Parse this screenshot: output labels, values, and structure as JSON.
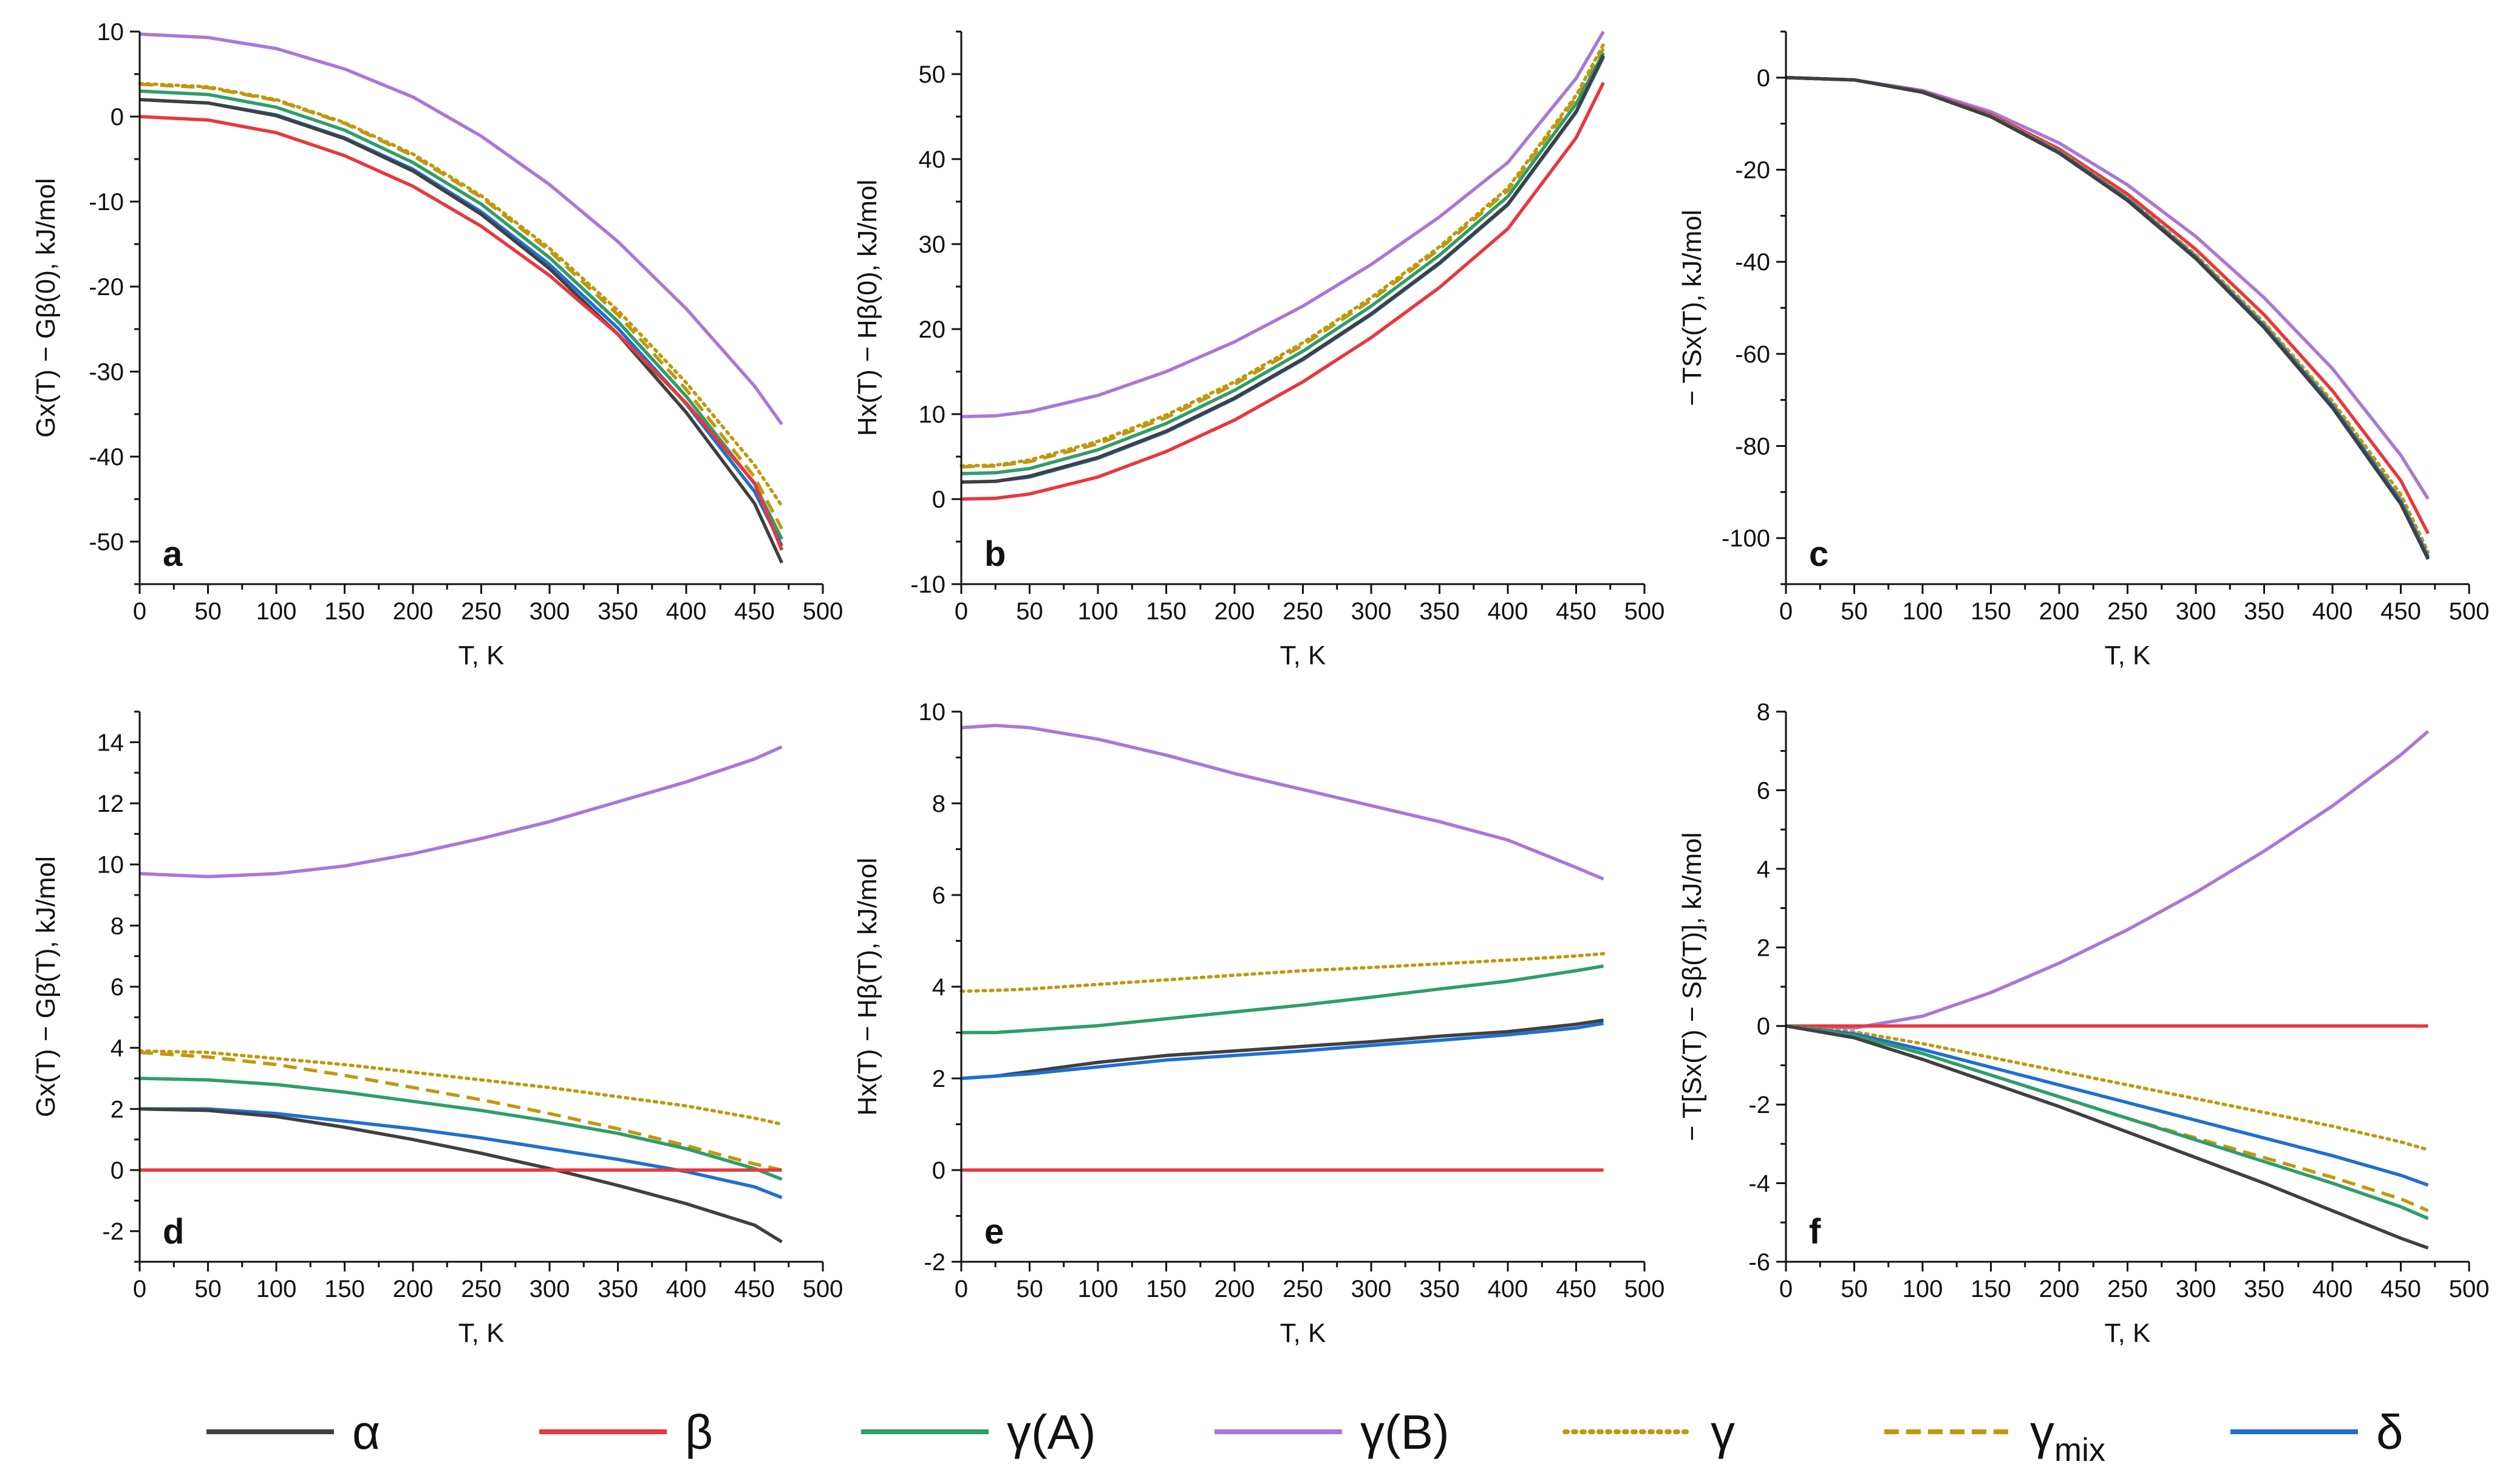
{
  "legend": [
    {
      "key": "alpha",
      "label": "α",
      "color": "#404040",
      "dash": "solid"
    },
    {
      "key": "beta",
      "label": "β",
      "color": "#e8383d",
      "dash": "solid"
    },
    {
      "key": "gammaA",
      "label": "γ(A)",
      "color": "#2e9e6a",
      "dash": "solid"
    },
    {
      "key": "gammaB",
      "label": "γ(B)",
      "color": "#a878d8",
      "dash": "solid"
    },
    {
      "key": "gamma",
      "label": "γ",
      "color": "#c0980e",
      "dash": "dotted"
    },
    {
      "key": "gammaMix",
      "label": "γ",
      "sub": "mix",
      "color": "#c0980e",
      "dash": "dashed"
    },
    {
      "key": "delta",
      "label": "δ",
      "color": "#1f6fd0",
      "dash": "solid"
    }
  ],
  "chart_data": [
    {
      "panel": "a",
      "type": "line",
      "xlabel": "T, K",
      "ylabel": "Gx(T) − Gβ(0), kJ/mol",
      "xlim": [
        0,
        500
      ],
      "ylim": [
        -55,
        10
      ],
      "xticks": [
        0,
        50,
        100,
        150,
        200,
        250,
        300,
        350,
        400,
        450,
        500
      ],
      "yticks": [
        -50,
        -40,
        -30,
        -20,
        -10,
        0,
        10
      ],
      "x": [
        0,
        50,
        100,
        150,
        200,
        250,
        300,
        350,
        400,
        450,
        470
      ],
      "series": [
        {
          "key": "gammaB",
          "values": [
            9.7,
            9.3,
            8,
            5.6,
            2.3,
            -2.3,
            -8,
            -14.7,
            -22.6,
            -31.7,
            -36.2
          ]
        },
        {
          "key": "gamma",
          "values": [
            3.9,
            3.5,
            2,
            -0.7,
            -4.4,
            -9.3,
            -15.5,
            -22.8,
            -31.3,
            -41,
            -45.8
          ]
        },
        {
          "key": "gammaMix",
          "values": [
            3.8,
            3.4,
            1.9,
            -0.8,
            -4.6,
            -9.5,
            -15.8,
            -23.3,
            -32.1,
            -42.4,
            -48.5
          ]
        },
        {
          "key": "gammaA",
          "values": [
            3,
            2.6,
            1.1,
            -1.6,
            -5.4,
            -10.3,
            -16.6,
            -24.1,
            -32.9,
            -43.2,
            -49.7
          ]
        },
        {
          "key": "delta",
          "values": [
            2,
            1.6,
            0.2,
            -2.5,
            -6.2,
            -11.2,
            -17.4,
            -24.9,
            -33.8,
            -44.1,
            -50.5
          ]
        },
        {
          "key": "alpha",
          "values": [
            2,
            1.6,
            0.1,
            -2.6,
            -6.4,
            -11.5,
            -17.9,
            -25.6,
            -34.8,
            -45.5,
            -52.5
          ]
        },
        {
          "key": "beta",
          "values": [
            0,
            -0.4,
            -1.9,
            -4.6,
            -8.2,
            -12.9,
            -18.7,
            -25.6,
            -33.7,
            -43.1,
            -51
          ]
        }
      ]
    },
    {
      "panel": "b",
      "type": "line",
      "xlabel": "T, K",
      "ylabel": "Hx(T) − Hβ(0), kJ/mol",
      "xlim": [
        0,
        500
      ],
      "ylim": [
        -10,
        55
      ],
      "xticks": [
        0,
        50,
        100,
        150,
        200,
        250,
        300,
        350,
        400,
        450,
        500
      ],
      "yticks": [
        -10,
        0,
        10,
        20,
        30,
        40,
        50
      ],
      "x": [
        0,
        25,
        50,
        100,
        150,
        200,
        250,
        300,
        350,
        400,
        450,
        470
      ],
      "series": [
        {
          "key": "gammaB",
          "values": [
            9.7,
            9.8,
            10.3,
            12.2,
            15,
            18.5,
            22.7,
            27.6,
            33.2,
            39.6,
            49.5,
            55
          ]
        },
        {
          "key": "gamma",
          "values": [
            3.9,
            4,
            4.6,
            6.8,
            9.9,
            13.8,
            18.4,
            23.7,
            29.7,
            36.6,
            47.5,
            53.5
          ]
        },
        {
          "key": "gammaMix",
          "values": [
            3.8,
            3.9,
            4.4,
            6.5,
            9.6,
            13.5,
            18.1,
            23.4,
            29.4,
            36.3,
            47.2,
            53
          ]
        },
        {
          "key": "gammaA",
          "values": [
            3,
            3.1,
            3.6,
            5.8,
            8.9,
            12.8,
            17.4,
            22.7,
            28.7,
            35.6,
            46.5,
            52.5
          ]
        },
        {
          "key": "delta",
          "values": [
            2,
            2.1,
            2.6,
            4.8,
            7.9,
            11.8,
            16.4,
            21.7,
            27.7,
            34.6,
            45.5,
            52
          ]
        },
        {
          "key": "alpha",
          "values": [
            2,
            2.1,
            2.7,
            4.9,
            8,
            11.9,
            16.5,
            21.8,
            27.8,
            34.7,
            45.6,
            52.2
          ]
        },
        {
          "key": "beta",
          "values": [
            0,
            0.1,
            0.6,
            2.6,
            5.6,
            9.3,
            13.8,
            19,
            24.9,
            31.8,
            42.5,
            49
          ]
        }
      ]
    },
    {
      "panel": "c",
      "type": "line",
      "xlabel": "T, K",
      "ylabel": "− TSx(T), kJ/mol",
      "xlim": [
        0,
        500
      ],
      "ylim": [
        -110,
        10
      ],
      "xticks": [
        0,
        50,
        100,
        150,
        200,
        250,
        300,
        350,
        400,
        450,
        500
      ],
      "yticks": [
        -100,
        -80,
        -60,
        -40,
        -20,
        0
      ],
      "x": [
        0,
        50,
        100,
        150,
        200,
        250,
        300,
        350,
        400,
        450,
        470
      ],
      "series": [
        {
          "key": "gammaB",
          "values": [
            0,
            -0.5,
            -2.8,
            -7.4,
            -14.2,
            -23.3,
            -34.5,
            -47.8,
            -63.2,
            -82,
            -91.5
          ]
        },
        {
          "key": "beta",
          "values": [
            0,
            -0.5,
            -3,
            -8,
            -15.5,
            -25.3,
            -37.3,
            -51.5,
            -68,
            -87.5,
            -99
          ]
        },
        {
          "key": "gamma",
          "values": [
            0,
            -0.5,
            -3.1,
            -8.3,
            -16,
            -26.1,
            -38.5,
            -53.2,
            -70.3,
            -90.5,
            -103
          ]
        },
        {
          "key": "gammaMix",
          "values": [
            0,
            -0.5,
            -3.1,
            -8.3,
            -16,
            -26.2,
            -38.7,
            -53.5,
            -70.8,
            -91.5,
            -104
          ]
        },
        {
          "key": "gammaA",
          "values": [
            0,
            -0.5,
            -3.1,
            -8.4,
            -16.2,
            -26.4,
            -39,
            -53.9,
            -71.2,
            -92,
            -104.3
          ]
        },
        {
          "key": "delta",
          "values": [
            0,
            -0.5,
            -3.1,
            -8.4,
            -16.2,
            -26.4,
            -39,
            -53.9,
            -71.2,
            -92,
            -104
          ]
        },
        {
          "key": "alpha",
          "values": [
            0,
            -0.5,
            -3.2,
            -8.5,
            -16.4,
            -26.7,
            -39.3,
            -54.3,
            -71.7,
            -92.6,
            -104.6
          ]
        }
      ]
    },
    {
      "panel": "d",
      "type": "line",
      "xlabel": "T, K",
      "ylabel": "Gx(T) − Gβ(T), kJ/mol",
      "xlim": [
        0,
        500
      ],
      "ylim": [
        -3,
        15
      ],
      "xticks": [
        0,
        50,
        100,
        150,
        200,
        250,
        300,
        350,
        400,
        450,
        500
      ],
      "yticks": [
        -2,
        0,
        2,
        4,
        6,
        8,
        10,
        12,
        14
      ],
      "x": [
        0,
        50,
        100,
        150,
        200,
        250,
        300,
        350,
        400,
        450,
        470
      ],
      "series": [
        {
          "key": "gammaB",
          "values": [
            9.7,
            9.6,
            9.7,
            9.95,
            10.35,
            10.85,
            11.4,
            12.05,
            12.7,
            13.45,
            13.85
          ]
        },
        {
          "key": "gamma",
          "values": [
            3.9,
            3.85,
            3.65,
            3.45,
            3.2,
            2.95,
            2.7,
            2.4,
            2.1,
            1.7,
            1.5
          ]
        },
        {
          "key": "gammaMix",
          "values": [
            3.85,
            3.7,
            3.45,
            3.1,
            2.7,
            2.3,
            1.85,
            1.35,
            0.8,
            0.2,
            0
          ]
        },
        {
          "key": "gammaA",
          "values": [
            3,
            2.95,
            2.8,
            2.55,
            2.25,
            1.95,
            1.6,
            1.2,
            0.7,
            0.05,
            -0.3
          ]
        },
        {
          "key": "delta",
          "values": [
            2,
            2,
            1.85,
            1.6,
            1.35,
            1.05,
            0.7,
            0.35,
            -0.05,
            -0.55,
            -0.9
          ]
        },
        {
          "key": "alpha",
          "values": [
            2,
            1.95,
            1.75,
            1.4,
            1,
            0.55,
            0.05,
            -0.5,
            -1.1,
            -1.8,
            -2.35
          ]
        },
        {
          "key": "beta",
          "values": [
            0,
            0,
            0,
            0,
            0,
            0,
            0,
            0,
            0,
            0,
            0
          ]
        }
      ]
    },
    {
      "panel": "e",
      "type": "line",
      "xlabel": "T, K",
      "ylabel": "Hx(T) − Hβ(T), kJ/mol",
      "xlim": [
        0,
        500
      ],
      "ylim": [
        -2,
        10
      ],
      "xticks": [
        0,
        50,
        100,
        150,
        200,
        250,
        300,
        350,
        400,
        450,
        500
      ],
      "yticks": [
        -2,
        0,
        2,
        4,
        6,
        8,
        10
      ],
      "x": [
        0,
        25,
        50,
        100,
        150,
        200,
        250,
        300,
        350,
        400,
        450,
        470
      ],
      "series": [
        {
          "key": "gammaB",
          "values": [
            9.65,
            9.7,
            9.65,
            9.4,
            9.05,
            8.65,
            8.3,
            7.95,
            7.6,
            7.2,
            6.6,
            6.35
          ]
        },
        {
          "key": "gamma",
          "values": [
            3.9,
            3.92,
            3.95,
            4.05,
            4.15,
            4.25,
            4.35,
            4.42,
            4.5,
            4.58,
            4.67,
            4.72
          ]
        },
        {
          "key": "gammaA",
          "values": [
            3,
            3,
            3.05,
            3.15,
            3.3,
            3.45,
            3.6,
            3.77,
            3.95,
            4.12,
            4.35,
            4.45
          ]
        },
        {
          "key": "alpha",
          "values": [
            2,
            2.05,
            2.15,
            2.35,
            2.5,
            2.6,
            2.7,
            2.8,
            2.92,
            3.02,
            3.18,
            3.27
          ]
        },
        {
          "key": "delta",
          "values": [
            2,
            2.05,
            2.1,
            2.25,
            2.4,
            2.5,
            2.6,
            2.72,
            2.83,
            2.95,
            3.1,
            3.2
          ]
        },
        {
          "key": "beta",
          "values": [
            0,
            0,
            0,
            0,
            0,
            0,
            0,
            0,
            0,
            0,
            0,
            0
          ]
        }
      ]
    },
    {
      "panel": "f",
      "type": "line",
      "xlabel": "T, K",
      "ylabel": "− T[Sx(T) − Sβ(T)], kJ/mol",
      "xlim": [
        0,
        500
      ],
      "ylim": [
        -6,
        8
      ],
      "xticks": [
        0,
        50,
        100,
        150,
        200,
        250,
        300,
        350,
        400,
        450,
        500
      ],
      "yticks": [
        -6,
        -4,
        -2,
        0,
        2,
        4,
        6,
        8
      ],
      "x": [
        0,
        50,
        100,
        150,
        200,
        250,
        300,
        350,
        400,
        450,
        470
      ],
      "series": [
        {
          "key": "gammaB",
          "values": [
            0,
            -0.05,
            0.25,
            0.85,
            1.6,
            2.45,
            3.4,
            4.45,
            5.6,
            6.9,
            7.5
          ]
        },
        {
          "key": "beta",
          "values": [
            0,
            0,
            0,
            0,
            0,
            0,
            0,
            0,
            0,
            0,
            0
          ]
        },
        {
          "key": "gamma",
          "values": [
            0,
            -0.15,
            -0.45,
            -0.8,
            -1.15,
            -1.5,
            -1.85,
            -2.2,
            -2.55,
            -2.95,
            -3.15
          ]
        },
        {
          "key": "delta",
          "values": [
            0,
            -0.2,
            -0.6,
            -1.05,
            -1.5,
            -1.95,
            -2.4,
            -2.85,
            -3.3,
            -3.8,
            -4.05
          ]
        },
        {
          "key": "gammaMix",
          "values": [
            0,
            -0.25,
            -0.7,
            -1.25,
            -1.8,
            -2.35,
            -2.85,
            -3.35,
            -3.85,
            -4.4,
            -4.7
          ]
        },
        {
          "key": "gammaA",
          "values": [
            0,
            -0.25,
            -0.7,
            -1.25,
            -1.8,
            -2.35,
            -2.9,
            -3.45,
            -4,
            -4.6,
            -4.9
          ]
        },
        {
          "key": "alpha",
          "values": [
            0,
            -0.3,
            -0.85,
            -1.45,
            -2.05,
            -2.7,
            -3.35,
            -4,
            -4.7,
            -5.4,
            -5.65
          ]
        }
      ]
    }
  ]
}
